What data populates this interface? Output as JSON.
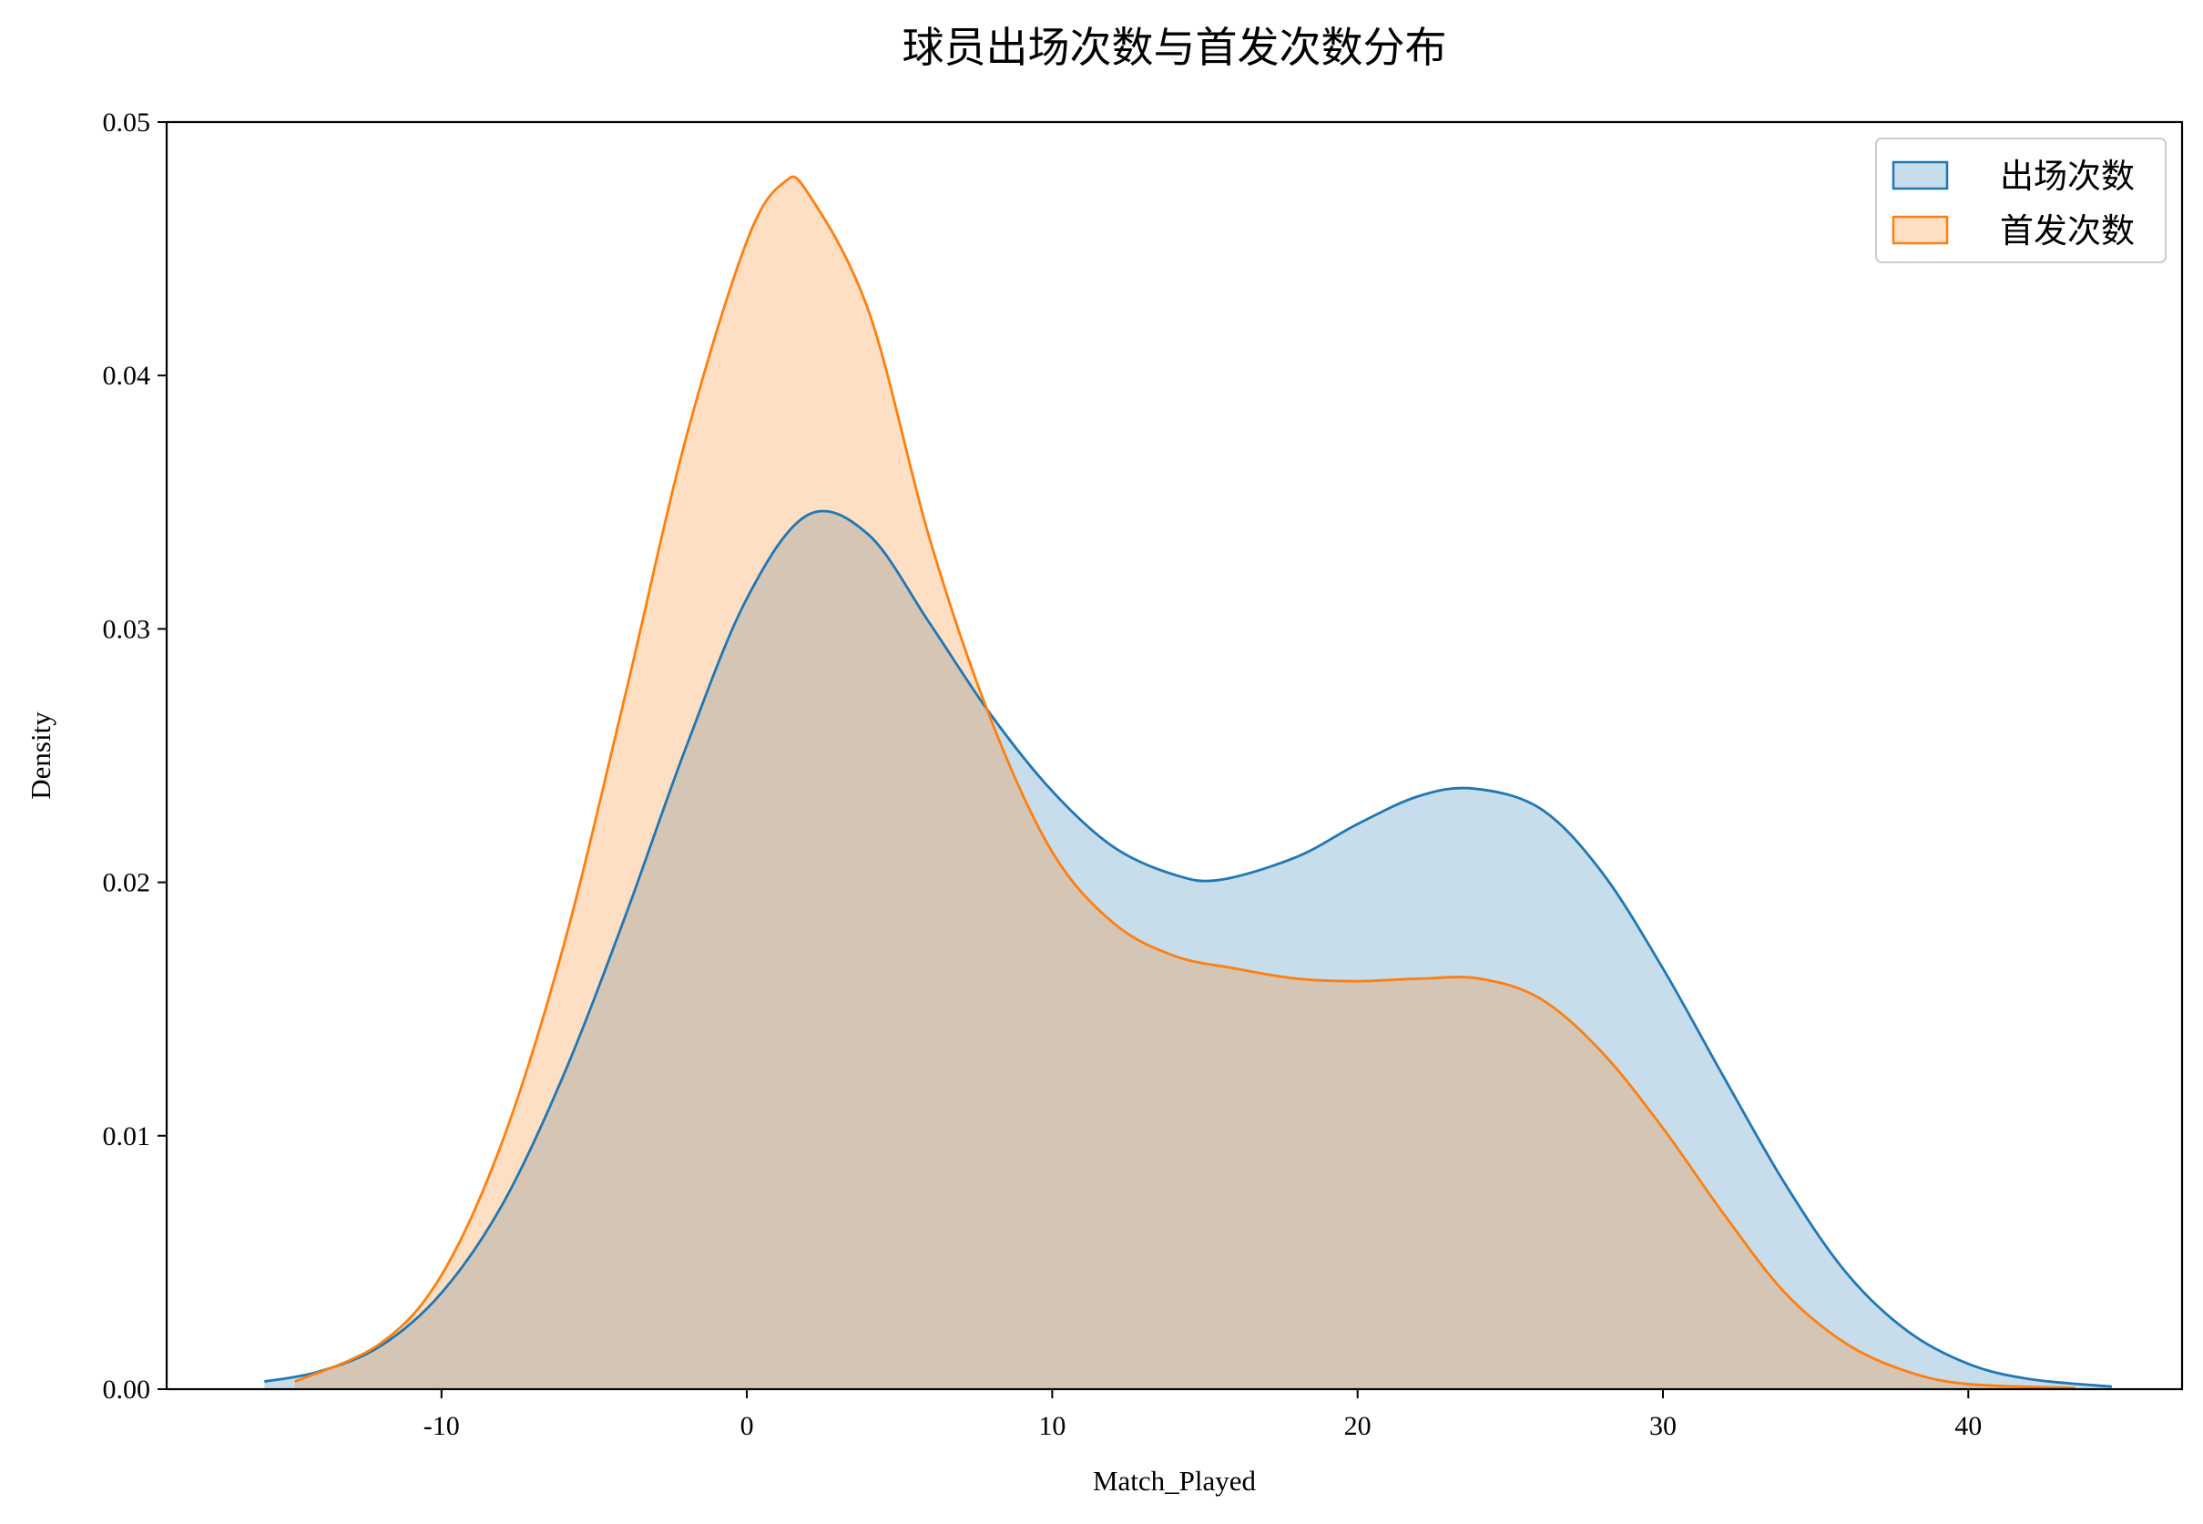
{
  "chart_data": {
    "type": "area",
    "title": "球员出场次数与首发次数分布",
    "xlabel": "Match_Played",
    "ylabel": "Density",
    "xlim": [
      -19,
      47
    ],
    "ylim": [
      0,
      0.05
    ],
    "x_ticks": [
      -10,
      0,
      10,
      20,
      30,
      40
    ],
    "x_tick_labels": [
      "-10",
      "0",
      "10",
      "20",
      "30",
      "40"
    ],
    "y_ticks": [
      0,
      0.01,
      0.02,
      0.03,
      0.04,
      0.05
    ],
    "y_tick_labels": [
      "0.00",
      "0.01",
      "0.02",
      "0.03",
      "0.04",
      "0.05"
    ],
    "grid": false,
    "legend_position": "top-right",
    "series": [
      {
        "name": "出场次数",
        "color": "#1f77b4",
        "fill_alpha": 0.25,
        "points": [
          [
            -15.8,
            0.0003
          ],
          [
            -14,
            0.0007
          ],
          [
            -12,
            0.0017
          ],
          [
            -10,
            0.0038
          ],
          [
            -8,
            0.0073
          ],
          [
            -6,
            0.0124
          ],
          [
            -4,
            0.0186
          ],
          [
            -2,
            0.0253
          ],
          [
            0,
            0.0312
          ],
          [
            2,
            0.0345
          ],
          [
            4,
            0.0337
          ],
          [
            6,
            0.0302
          ],
          [
            8,
            0.0266
          ],
          [
            10,
            0.0236
          ],
          [
            12,
            0.0214
          ],
          [
            14,
            0.0203
          ],
          [
            15.5,
            0.0201
          ],
          [
            18,
            0.021
          ],
          [
            20,
            0.0223
          ],
          [
            22,
            0.0234
          ],
          [
            23.8,
            0.0237
          ],
          [
            26,
            0.0229
          ],
          [
            28,
            0.0204
          ],
          [
            30,
            0.0166
          ],
          [
            32,
            0.0123
          ],
          [
            34,
            0.0081
          ],
          [
            36,
            0.0046
          ],
          [
            38,
            0.0023
          ],
          [
            40,
            0.001
          ],
          [
            42,
            0.0004
          ],
          [
            44.7,
            0.0001
          ]
        ]
      },
      {
        "name": "首发次数",
        "color": "#ff7f0e",
        "fill_alpha": 0.25,
        "points": [
          [
            -14.8,
            0.0003
          ],
          [
            -12,
            0.0018
          ],
          [
            -10,
            0.0045
          ],
          [
            -8,
            0.0098
          ],
          [
            -6,
            0.0175
          ],
          [
            -4,
            0.0273
          ],
          [
            -2,
            0.0375
          ],
          [
            0,
            0.0453
          ],
          [
            1.2,
            0.0476
          ],
          [
            2,
            0.0472
          ],
          [
            4,
            0.0425
          ],
          [
            6,
            0.0335
          ],
          [
            8,
            0.0264
          ],
          [
            10,
            0.0212
          ],
          [
            12,
            0.0184
          ],
          [
            14,
            0.0171
          ],
          [
            16,
            0.0166
          ],
          [
            18,
            0.0162
          ],
          [
            20,
            0.0161
          ],
          [
            22,
            0.0162
          ],
          [
            24,
            0.0162
          ],
          [
            26,
            0.0154
          ],
          [
            28,
            0.0133
          ],
          [
            30,
            0.0103
          ],
          [
            32,
            0.0069
          ],
          [
            34,
            0.0038
          ],
          [
            36,
            0.0018
          ],
          [
            38,
            0.0007
          ],
          [
            40,
            0.0002
          ],
          [
            43.5,
            5e-05
          ]
        ]
      }
    ]
  }
}
